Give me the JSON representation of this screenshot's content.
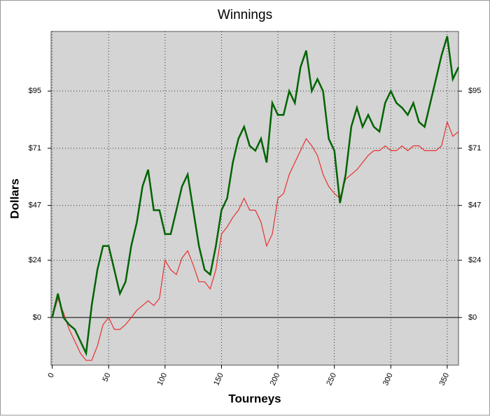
{
  "chart_data": {
    "type": "line",
    "title": "Winnings",
    "x_label": "Tourneys",
    "y_label": "Dollars",
    "x": [
      0,
      5,
      10,
      15,
      20,
      25,
      30,
      35,
      40,
      45,
      50,
      55,
      60,
      65,
      70,
      75,
      80,
      85,
      90,
      95,
      100,
      105,
      110,
      115,
      120,
      125,
      130,
      135,
      140,
      145,
      150,
      155,
      160,
      165,
      170,
      175,
      180,
      185,
      190,
      195,
      200,
      205,
      210,
      215,
      220,
      225,
      230,
      235,
      240,
      245,
      250,
      255,
      260,
      265,
      270,
      275,
      280,
      285,
      290,
      295,
      300,
      305,
      310,
      315,
      320,
      325,
      330,
      335,
      340,
      345,
      350,
      355,
      360
    ],
    "series": [
      {
        "color": "#006400",
        "values": [
          0,
          10,
          0,
          -3,
          -5,
          -10,
          -15,
          5,
          20,
          30,
          30,
          20,
          10,
          15,
          30,
          40,
          55,
          62,
          45,
          45,
          35,
          35,
          45,
          55,
          60,
          45,
          30,
          20,
          18,
          30,
          45,
          50,
          65,
          75,
          80,
          72,
          70,
          75,
          65,
          90,
          85,
          85,
          95,
          90,
          105,
          112,
          95,
          100,
          95,
          75,
          70,
          48,
          60,
          80,
          88,
          80,
          85,
          80,
          78,
          90,
          95,
          90,
          88,
          85,
          90,
          82,
          80,
          90,
          100,
          110,
          118,
          100,
          105
        ]
      },
      {
        "color": "#e83030",
        "values": [
          0,
          8,
          2,
          -5,
          -10,
          -15,
          -18,
          -18,
          -12,
          -3,
          0,
          -5,
          -5,
          -3,
          0,
          3,
          5,
          7,
          5,
          8,
          24,
          20,
          18,
          25,
          28,
          22,
          15,
          15,
          12,
          20,
          35,
          38,
          42,
          45,
          50,
          45,
          45,
          40,
          30,
          35,
          50,
          52,
          60,
          65,
          70,
          75,
          72,
          68,
          60,
          55,
          52,
          50,
          58,
          60,
          62,
          65,
          68,
          70,
          70,
          72,
          70,
          70,
          72,
          70,
          72,
          72,
          70,
          70,
          70,
          72,
          82,
          76,
          78
        ]
      }
    ],
    "xlim": [
      -1,
      360
    ],
    "xticks": [
      0,
      50,
      100,
      150,
      200,
      250,
      300,
      350
    ],
    "ylim": [
      -20,
      120
    ],
    "yticks": [
      {
        "value": 0,
        "label": "$0"
      },
      {
        "value": 24,
        "label": "$24"
      },
      {
        "value": 47,
        "label": "$47"
      },
      {
        "value": 71,
        "label": "$71"
      },
      {
        "value": 95,
        "label": "$95"
      }
    ],
    "grid": true
  }
}
